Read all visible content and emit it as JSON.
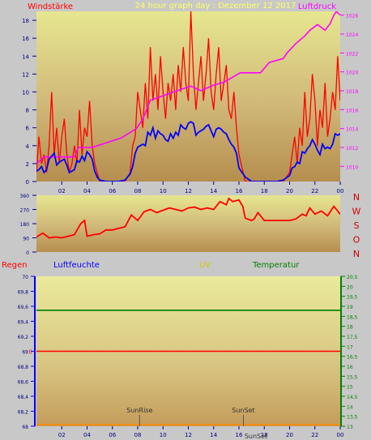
{
  "colors": {
    "frame": "#c8c8c8",
    "wind": "#ff0000",
    "pressure": "#ff00ff",
    "direction": "#ff0000",
    "humidity": "#0000ff",
    "temperature": "#008000",
    "uv": "#cccc00",
    "rain": "#ff0000",
    "title": "#ffff66",
    "tick": "#000080",
    "compass": "#cc0000"
  },
  "header": {
    "left": "Windstärke",
    "center": "24 hour graph day : Dezember 12 2017",
    "right": "Luftdruck"
  },
  "compass": [
    "N",
    "W",
    "S",
    "O",
    "N"
  ],
  "legend2": {
    "rain": "Regen",
    "humidity": "Luftfeuchte",
    "uv": "UV",
    "temperature": "Temperatur"
  },
  "x_ticks": [
    "02",
    "04",
    "06",
    "08",
    "10",
    "12",
    "14",
    "16",
    "18",
    "20",
    "22",
    "00"
  ],
  "chart_data": [
    {
      "type": "line",
      "title": "Windstärke / Luftdruck",
      "x_unit": "hour",
      "xlim": [
        0,
        24
      ],
      "ylim_left": [
        0,
        19
      ],
      "y_ticks_left": [
        0,
        2,
        4,
        6,
        8,
        10,
        12,
        14,
        16,
        18
      ],
      "ylim_right": [
        1008.4,
        1026.4
      ],
      "y_ticks_right": [
        1010,
        1012,
        1014,
        1016,
        1018,
        1020,
        1022,
        1024,
        1026
      ],
      "series": [
        {
          "name": "Windstärke",
          "axis": "left",
          "x": [
            0.0,
            0.2,
            0.4,
            0.6,
            0.8,
            1.0,
            1.2,
            1.4,
            1.6,
            1.8,
            2.0,
            2.2,
            2.4,
            2.6,
            2.8,
            3.0,
            3.2,
            3.4,
            3.6,
            3.8,
            4.0,
            4.2,
            4.4,
            4.6,
            4.8,
            5.0,
            5.5,
            6.0,
            6.5,
            7.0,
            7.4,
            7.6,
            7.8,
            8.0,
            8.2,
            8.4,
            8.6,
            8.8,
            9.0,
            9.2,
            9.4,
            9.6,
            9.8,
            10.0,
            10.2,
            10.4,
            10.6,
            10.8,
            11.0,
            11.2,
            11.4,
            11.6,
            11.8,
            12.0,
            12.2,
            12.4,
            12.6,
            12.8,
            13.0,
            13.2,
            13.4,
            13.6,
            13.8,
            14.0,
            14.2,
            14.4,
            14.6,
            14.8,
            15.0,
            15.2,
            15.4,
            15.6,
            15.8,
            16.0,
            16.5,
            17.0,
            17.5,
            18.0,
            18.5,
            19.0,
            19.5,
            20.0,
            20.2,
            20.4,
            20.6,
            20.8,
            21.0,
            21.2,
            21.4,
            21.6,
            21.8,
            22.0,
            22.2,
            22.4,
            22.6,
            22.8,
            23.0,
            23.2,
            23.4,
            23.6,
            23.8,
            24.0
          ],
          "values": [
            1,
            5,
            2,
            3,
            1,
            4,
            10,
            3,
            6,
            2,
            5,
            7,
            3,
            1,
            2,
            4,
            2,
            8,
            3,
            6,
            5,
            9,
            4,
            2,
            1,
            0,
            0,
            0,
            0,
            0,
            1,
            4,
            5,
            10,
            8,
            6,
            11,
            7,
            15,
            9,
            12,
            8,
            14,
            10,
            7,
            11,
            9,
            12,
            8,
            13,
            10,
            15,
            11,
            9,
            19,
            12,
            8,
            11,
            14,
            9,
            12,
            16,
            10,
            8,
            12,
            15,
            9,
            11,
            13,
            8,
            7,
            10,
            6,
            3,
            0,
            0,
            0,
            0,
            0,
            0,
            0,
            1,
            3,
            5,
            2,
            6,
            4,
            10,
            5,
            7,
            12,
            9,
            4,
            8,
            6,
            11,
            5,
            7,
            10,
            8,
            14,
            9
          ],
          "note": "estimated from plot"
        },
        {
          "name": "Luftdruck",
          "axis": "right",
          "x": [
            0,
            0.6,
            3.0,
            3.3,
            4.4,
            6.7,
            7.9,
            8.4,
            9.0,
            11.1,
            12.2,
            13.0,
            14.0,
            14.8,
            16.1,
            17.7,
            18.4,
            19.5,
            19.8,
            20.5,
            21.2,
            21.6,
            22.2,
            22.8,
            23.2,
            23.5,
            23.7,
            24.0
          ],
          "values": [
            1010.3,
            1011.0,
            1011.0,
            1012.0,
            1012.0,
            1013.0,
            1014.0,
            1015.0,
            1017.0,
            1018.0,
            1018.5,
            1018.0,
            1018.6,
            1018.9,
            1019.9,
            1019.9,
            1021.0,
            1021.4,
            1022.0,
            1023.0,
            1023.8,
            1024.4,
            1025.0,
            1024.4,
            1025.1,
            1026.0,
            1026.4,
            1026.0
          ],
          "note": "estimated from plot"
        }
      ]
    },
    {
      "type": "line",
      "title": "Windrichtung",
      "x_unit": "hour",
      "xlim": [
        0,
        24
      ],
      "ylim": [
        0,
        360
      ],
      "y_ticks": [
        0,
        90,
        180,
        270,
        360
      ],
      "series": [
        {
          "name": "Windrichtung",
          "x": [
            0,
            0.5,
            1.0,
            1.5,
            2.0,
            2.5,
            3.0,
            3.5,
            3.8,
            4.0,
            4.5,
            5.0,
            5.5,
            6.0,
            6.5,
            7.0,
            7.5,
            8.0,
            8.5,
            9.0,
            9.5,
            10.0,
            10.5,
            11.0,
            11.5,
            12.0,
            12.5,
            13.0,
            13.5,
            14.0,
            14.5,
            15.0,
            15.2,
            15.5,
            16.0,
            16.3,
            16.5,
            17.0,
            17.2,
            17.5,
            18.0,
            19.0,
            20.0,
            20.5,
            21.0,
            21.3,
            21.6,
            22.0,
            22.5,
            23.0,
            23.5,
            24.0
          ],
          "values": [
            95,
            120,
            90,
            95,
            90,
            100,
            110,
            180,
            200,
            100,
            110,
            115,
            140,
            140,
            150,
            160,
            235,
            200,
            255,
            270,
            250,
            265,
            280,
            270,
            260,
            280,
            285,
            270,
            280,
            270,
            320,
            300,
            340,
            320,
            330,
            290,
            215,
            200,
            210,
            250,
            200,
            200,
            200,
            210,
            240,
            230,
            280,
            240,
            260,
            230,
            290,
            240
          ],
          "note": "estimated from plot"
        }
      ]
    },
    {
      "type": "line",
      "title": "Regen / Luftfeuchte / UV / Temperatur",
      "x_unit": "hour",
      "xlim": [
        0,
        24
      ],
      "ylim_left": [
        68,
        70
      ],
      "y_ticks_left": [
        68,
        68.2,
        68.4,
        68.6,
        68.8,
        69,
        69.2,
        69.4,
        69.6,
        69.8,
        70
      ],
      "ylim_right": [
        13,
        20.5
      ],
      "y_ticks_right": [
        13,
        13.5,
        14,
        14.5,
        15,
        15.5,
        16,
        16.5,
        17,
        17.5,
        18,
        18.5,
        19,
        19.5,
        20,
        20.5
      ],
      "rain_zero_label": "0",
      "series": [
        {
          "name": "Temperatur",
          "axis": "right",
          "x": [
            0,
            24
          ],
          "values": [
            18.8,
            18.8
          ]
        },
        {
          "name": "Regen",
          "axis": "left",
          "x": [
            0,
            24
          ],
          "values": [
            69.0,
            69.0
          ]
        },
        {
          "name": "UV",
          "axis": "left",
          "x": [
            0,
            24
          ],
          "values": [
            68.02,
            68.02
          ]
        }
      ],
      "annotations": [
        {
          "text": "SunRise",
          "x": 8.15
        },
        {
          "text": "SunSet",
          "x": 16.35
        }
      ]
    }
  ],
  "bottom_marker": "SunSet"
}
